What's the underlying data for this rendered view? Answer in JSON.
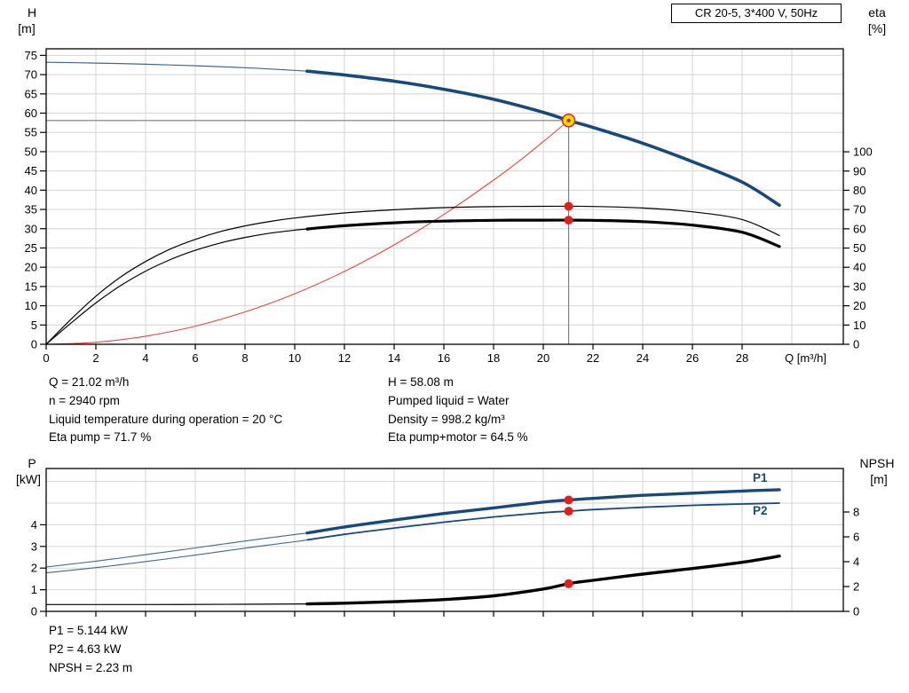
{
  "title_box": "CR 20-5, 3*400 V, 50Hz",
  "colors": {
    "blue": "#17497c",
    "blue_thin": "#41678f",
    "black": "#000000",
    "red": "#e8463c",
    "marker_red": "#e01f1f",
    "duty_yellow": "#ffdf00",
    "grid": "#d4d4d4",
    "duty_line": "#7a7a7a"
  },
  "top_chart_titles": {
    "left1": "H",
    "left2": "[m]",
    "right1": "eta",
    "right2": "[%]"
  },
  "bottom_chart_titles": {
    "left1": "P",
    "left2": "[kW]",
    "right1": "NPSH",
    "right2": "[m]"
  },
  "curve_labels": {
    "p1": "P1",
    "p2": "P2"
  },
  "annotations": {
    "col1": [
      "Q = 21.02 m³/h",
      "n = 2940 rpm",
      "Liquid temperature during operation = 20 °C",
      "Eta pump = 71.7 %"
    ],
    "col2": [
      "H = 58.08 m",
      "Pumped liquid = Water",
      "Density = 998.2 kg/m³",
      "Eta pump+motor = 64.5 %"
    ],
    "bottom": [
      "P1 = 5.144 kW",
      "P2 = 4.63 kW",
      "NPSH = 2.23 m"
    ]
  },
  "chart_data": [
    {
      "type": "line",
      "title": "CR 20-5, 3*400 V, 50Hz",
      "xlabel": "Q [m³/h]",
      "x_range": [
        0,
        32.07
      ],
      "x_ticks": [
        0,
        2,
        4,
        6,
        8,
        10,
        12,
        14,
        16,
        18,
        20,
        22,
        24,
        26,
        28
      ],
      "x_tick_labels": true,
      "grid_v": [
        2,
        4,
        6,
        8,
        10,
        12,
        14,
        16,
        18,
        20,
        22,
        24,
        26,
        28,
        30
      ],
      "grid_h": [
        5,
        10,
        15,
        20,
        25,
        30,
        35,
        40,
        45,
        50,
        55,
        60,
        65,
        70,
        75
      ],
      "left_axis": {
        "label": "H [m]",
        "range": [
          0,
          76.7
        ],
        "ticks": [
          75,
          70,
          65,
          60,
          55,
          50,
          45,
          40,
          35,
          30,
          25,
          20,
          15,
          10,
          5,
          0
        ]
      },
      "right_axis": {
        "label": "eta [%]",
        "range": [
          0,
          153.5
        ],
        "ticks": [
          100,
          90,
          80,
          70,
          60,
          50,
          40,
          30,
          20,
          10,
          0
        ]
      },
      "duty_point": {
        "q": 21.02,
        "h": 58.08
      },
      "series": [
        {
          "id": "qh-curve-thin",
          "axis": "left",
          "color": "blue_thin",
          "width": 1.2,
          "points": [
            [
              0,
              73.2
            ],
            [
              2,
              73.0
            ],
            [
              4,
              72.7
            ],
            [
              6,
              72.3
            ],
            [
              8,
              71.8
            ],
            [
              10,
              71.1
            ],
            [
              10.5,
              70.9
            ]
          ]
        },
        {
          "id": "qh-curve-thick",
          "axis": "left",
          "color": "blue",
          "width": 3.6,
          "points": [
            [
              10.5,
              70.9
            ],
            [
              12,
              69.9
            ],
            [
              14,
              68.3
            ],
            [
              16,
              66.2
            ],
            [
              18,
              63.6
            ],
            [
              20,
              60.2
            ],
            [
              21.02,
              58.08
            ],
            [
              22,
              56.3
            ],
            [
              24,
              52.2
            ],
            [
              26,
              47.4
            ],
            [
              28,
              42.1
            ],
            [
              29.5,
              36.1
            ]
          ]
        },
        {
          "id": "system-curve",
          "axis": "left",
          "color": "red",
          "width": 1.1,
          "points": [
            [
              0,
              0
            ],
            [
              2,
              0.5
            ],
            [
              4,
              2.1
            ],
            [
              6,
              4.7
            ],
            [
              8,
              8.4
            ],
            [
              10,
              13.1
            ],
            [
              12,
              18.9
            ],
            [
              14,
              25.8
            ],
            [
              16,
              33.7
            ],
            [
              18,
              42.6
            ],
            [
              19,
              47.4
            ],
            [
              20,
              52.6
            ],
            [
              21.02,
              58.08
            ]
          ]
        },
        {
          "id": "eta-pump-curve",
          "axis": "right",
          "color": "black",
          "width": 1.2,
          "points": [
            [
              0,
              0
            ],
            [
              1,
              13
            ],
            [
              2,
              25
            ],
            [
              3,
              35
            ],
            [
              4,
              43
            ],
            [
              5,
              49.5
            ],
            [
              6,
              54.5
            ],
            [
              7,
              58.5
            ],
            [
              8,
              61.5
            ],
            [
              9,
              63.8
            ],
            [
              10,
              65.6
            ],
            [
              12,
              68.2
            ],
            [
              14,
              69.9
            ],
            [
              16,
              71.0
            ],
            [
              18,
              71.5
            ],
            [
              20,
              71.7
            ],
            [
              21.02,
              71.7
            ],
            [
              22,
              71.6
            ],
            [
              24,
              70.8
            ],
            [
              26,
              68.8
            ],
            [
              28,
              64.8
            ],
            [
              29.5,
              56.5
            ]
          ]
        },
        {
          "id": "eta-pump-motor-thin",
          "axis": "right",
          "color": "black",
          "width": 1.2,
          "points": [
            [
              0,
              0
            ],
            [
              1,
              11
            ],
            [
              2,
              21.5
            ],
            [
              3,
              30.5
            ],
            [
              4,
              38
            ],
            [
              5,
              44
            ],
            [
              6,
              48.8
            ],
            [
              7,
              52.6
            ],
            [
              8,
              55.5
            ],
            [
              9,
              57.7
            ],
            [
              10,
              59.3
            ],
            [
              10.5,
              59.9
            ]
          ]
        },
        {
          "id": "eta-pump-motor-thick",
          "axis": "right",
          "color": "black",
          "width": 3.2,
          "points": [
            [
              10.5,
              59.9
            ],
            [
              12,
              61.6
            ],
            [
              14,
              63.1
            ],
            [
              16,
              64.0
            ],
            [
              18,
              64.4
            ],
            [
              20,
              64.5
            ],
            [
              21.02,
              64.5
            ],
            [
              22,
              64.4
            ],
            [
              24,
              63.7
            ],
            [
              26,
              61.9
            ],
            [
              28,
              58.2
            ],
            [
              29.5,
              50.8
            ]
          ]
        }
      ],
      "markers": [
        {
          "q": 21.02,
          "v": 58.08,
          "axis": "left",
          "type": "duty"
        },
        {
          "q": 21.02,
          "v": 71.7,
          "axis": "right",
          "type": "dot"
        },
        {
          "q": 21.02,
          "v": 64.5,
          "axis": "right",
          "type": "dot"
        }
      ]
    },
    {
      "type": "line",
      "title": "Power and NPSH curves",
      "xlabel": "",
      "x_range": [
        0,
        32.07
      ],
      "x_ticks": [
        0,
        2,
        4,
        6,
        8,
        10,
        12,
        14,
        16,
        18,
        20,
        22,
        24,
        26,
        28
      ],
      "x_tick_labels": false,
      "grid_v": [
        2,
        4,
        6,
        8,
        10,
        12,
        14,
        16,
        18,
        20,
        22,
        24,
        26,
        28,
        30
      ],
      "grid_h": [
        1,
        2,
        3,
        4,
        5,
        6
      ],
      "left_axis": {
        "label": "P [kW]",
        "range": [
          0,
          6.6
        ],
        "ticks": [
          4,
          3,
          2,
          1,
          0
        ]
      },
      "right_axis": {
        "label": "NPSH [m]",
        "range": [
          0,
          11.5
        ],
        "ticks": [
          8,
          6,
          4,
          2,
          0
        ]
      },
      "series": [
        {
          "id": "p1-curve-thin",
          "axis": "left",
          "color": "blue_thin",
          "width": 1.1,
          "points": [
            [
              0,
              2.05
            ],
            [
              2,
              2.32
            ],
            [
              4,
              2.62
            ],
            [
              6,
              2.93
            ],
            [
              8,
              3.25
            ],
            [
              10,
              3.55
            ],
            [
              10.5,
              3.62
            ]
          ]
        },
        {
          "id": "p1-curve-thick",
          "axis": "left",
          "color": "blue",
          "width": 3.4,
          "points": [
            [
              10.5,
              3.62
            ],
            [
              12,
              3.9
            ],
            [
              14,
              4.22
            ],
            [
              16,
              4.52
            ],
            [
              18,
              4.78
            ],
            [
              20,
              5.05
            ],
            [
              21.02,
              5.144
            ],
            [
              22,
              5.22
            ],
            [
              24,
              5.36
            ],
            [
              26,
              5.46
            ],
            [
              28,
              5.56
            ],
            [
              29.5,
              5.62
            ]
          ]
        },
        {
          "id": "p2-curve-thin",
          "axis": "left",
          "color": "blue_thin",
          "width": 1.1,
          "points": [
            [
              0,
              1.78
            ],
            [
              2,
              2.02
            ],
            [
              4,
              2.3
            ],
            [
              6,
              2.6
            ],
            [
              8,
              2.92
            ],
            [
              10,
              3.22
            ],
            [
              10.5,
              3.3
            ]
          ]
        },
        {
          "id": "p2-curve-thick",
          "axis": "left",
          "color": "blue",
          "width": 1.8,
          "points": [
            [
              10.5,
              3.3
            ],
            [
              12,
              3.56
            ],
            [
              14,
              3.85
            ],
            [
              16,
              4.12
            ],
            [
              18,
              4.36
            ],
            [
              20,
              4.56
            ],
            [
              21.02,
              4.63
            ],
            [
              22,
              4.7
            ],
            [
              24,
              4.81
            ],
            [
              26,
              4.9
            ],
            [
              28,
              4.96
            ],
            [
              29.5,
              5.0
            ]
          ]
        },
        {
          "id": "npsh-curve-thin",
          "axis": "right",
          "color": "black",
          "width": 1.2,
          "points": [
            [
              0,
              0.55
            ],
            [
              4,
              0.55
            ],
            [
              8,
              0.57
            ],
            [
              10.5,
              0.6
            ]
          ]
        },
        {
          "id": "npsh-curve-thick",
          "axis": "right",
          "color": "black",
          "width": 3.4,
          "points": [
            [
              10.5,
              0.6
            ],
            [
              12,
              0.66
            ],
            [
              14,
              0.78
            ],
            [
              16,
              0.95
            ],
            [
              18,
              1.25
            ],
            [
              20,
              1.8
            ],
            [
              21.02,
              2.23
            ],
            [
              22,
              2.5
            ],
            [
              24,
              3.0
            ],
            [
              26,
              3.45
            ],
            [
              28,
              3.95
            ],
            [
              29.5,
              4.45
            ]
          ]
        }
      ],
      "markers": [
        {
          "q": 21.02,
          "v": 5.144,
          "axis": "left",
          "type": "dot"
        },
        {
          "q": 21.02,
          "v": 4.63,
          "axis": "left",
          "type": "dot"
        },
        {
          "q": 21.02,
          "v": 2.23,
          "axis": "right",
          "type": "dot"
        }
      ]
    }
  ]
}
